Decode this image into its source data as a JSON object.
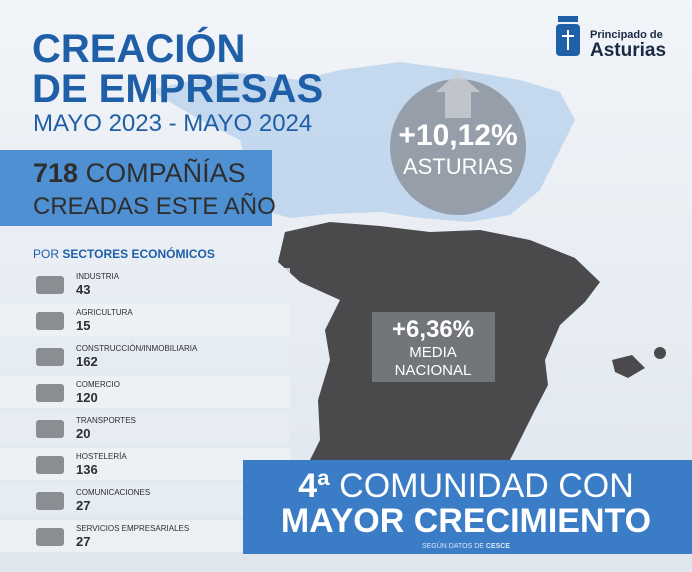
{
  "logo": {
    "line1": "Principado de",
    "line2": "Asturias"
  },
  "header": {
    "title_line1": "CREACIÓN",
    "title_line2": "DE EMPRESAS",
    "subtitle": "MAYO 2023 - MAYO 2024"
  },
  "total": {
    "number": "718",
    "line1_rest": "COMPAÑÍAS",
    "line2": "CREADAS ESTE AÑO"
  },
  "sectors_heading": {
    "prefix": "POR",
    "bold": "SECTORES ECONÓMICOS"
  },
  "sectors": [
    {
      "name": "INDUSTRIA",
      "value": 43
    },
    {
      "name": "AGRICULTURA",
      "value": 15
    },
    {
      "name": "CONSTRUCCIÓN/INMOBILIARIA",
      "value": 162
    },
    {
      "name": "COMERCIO",
      "value": 120
    },
    {
      "name": "TRANSPORTES",
      "value": 20
    },
    {
      "name": "HOSTELERÍA",
      "value": 136
    },
    {
      "name": "COMUNICACIONES",
      "value": 27
    },
    {
      "name": "SERVICIOS EMPRESARIALES",
      "value": 27
    }
  ],
  "asturias": {
    "value": "+10,12%",
    "label": "ASTURIAS"
  },
  "national": {
    "value": "+6,36%",
    "label_line1": "MEDIA",
    "label_line2": "NACIONAL"
  },
  "banner": {
    "line1_bold": "4ª",
    "line1_rest": "COMUNIDAD CON",
    "line2": "MAYOR CRECIMIENTO"
  },
  "source": {
    "prefix": "SEGÚN DATOS DE",
    "bold": "CESCE"
  }
}
